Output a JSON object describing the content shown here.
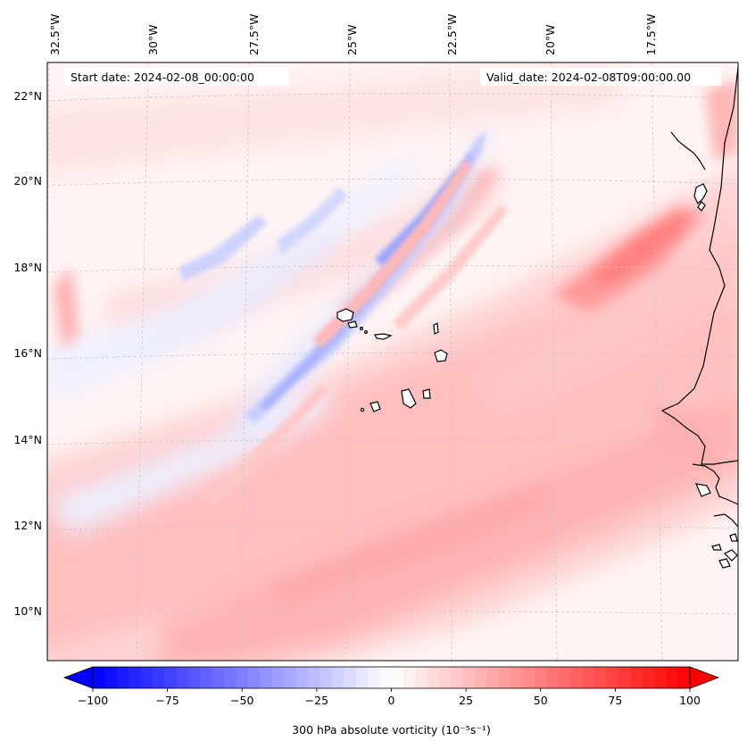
{
  "header": {
    "start_date": "Start date: 2024-02-08_00:00:00",
    "valid_date": "Valid_date: 2024-02-08T09:00:00.00"
  },
  "map": {
    "projection": "lambert-conformal",
    "lon_labels": [
      "32.5°W",
      "30°W",
      "27.5°W",
      "25°W",
      "22.5°W",
      "20°W",
      "17.5°W"
    ],
    "lat_labels": [
      "22°N",
      "20°N",
      "18°N",
      "16°N",
      "14°N",
      "12°N",
      "10°N"
    ],
    "coastline_color": "#000000",
    "grid_color": "#c8c8c8"
  },
  "chart_data": {
    "type": "heatmap",
    "field": "300 hPa absolute vorticity",
    "colormap": "bwr",
    "vmin": -100,
    "vmax": 100,
    "extend": "both",
    "colorbar": {
      "ticks": [
        -100,
        -75,
        -50,
        -25,
        0,
        25,
        50,
        75,
        100
      ],
      "tick_labels": [
        "−100",
        "−75",
        "−50",
        "−25",
        "0",
        "25",
        "50",
        "75",
        "100"
      ],
      "label": "300 hPa absolute vorticity (10⁻⁵s⁻¹)"
    },
    "colors": {
      "negative": "#0000ff",
      "zero": "#ffffff",
      "positive": "#ff0000"
    }
  }
}
